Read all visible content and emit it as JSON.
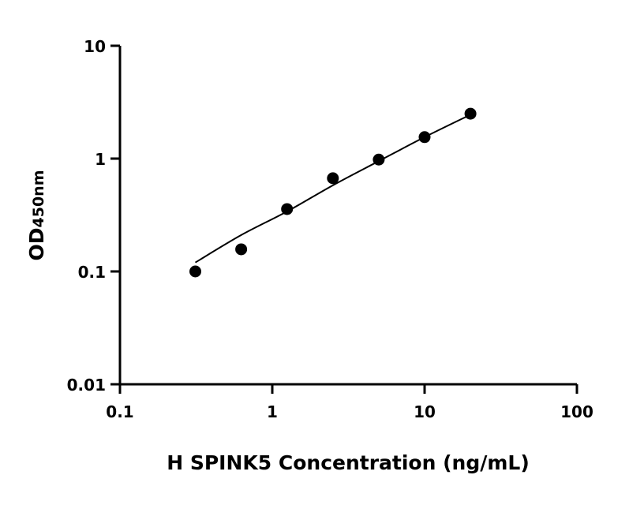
{
  "chart_data": {
    "type": "scatter",
    "xlabel": "H SPINK5 Concentration (ng/mL)",
    "ylabel_main": "OD",
    "ylabel_sub": "450nm",
    "x_scale": "log",
    "y_scale": "log",
    "xlim": [
      0.1,
      100
    ],
    "ylim": [
      0.01,
      10
    ],
    "x_ticks": [
      0.1,
      1,
      10,
      100
    ],
    "x_tick_labels": [
      "0.1",
      "1",
      "10",
      "100"
    ],
    "y_ticks": [
      0.01,
      0.1,
      1,
      10
    ],
    "y_tick_labels": [
      "0.01",
      "0.1",
      "1",
      "10"
    ],
    "grid": false,
    "legend": "none",
    "point_color": "#000000",
    "series": [
      {
        "x": [
          0.3125,
          0.625,
          1.25,
          2.5,
          5,
          10,
          20
        ],
        "y": [
          0.1,
          0.157,
          0.357,
          0.67,
          0.98,
          1.55,
          2.5
        ]
      }
    ],
    "fit_curve": {
      "x": [
        0.3125,
        0.625,
        1.25,
        2.5,
        5,
        10,
        20
      ],
      "y": [
        0.12,
        0.21,
        0.34,
        0.58,
        0.95,
        1.55,
        2.45
      ]
    }
  }
}
